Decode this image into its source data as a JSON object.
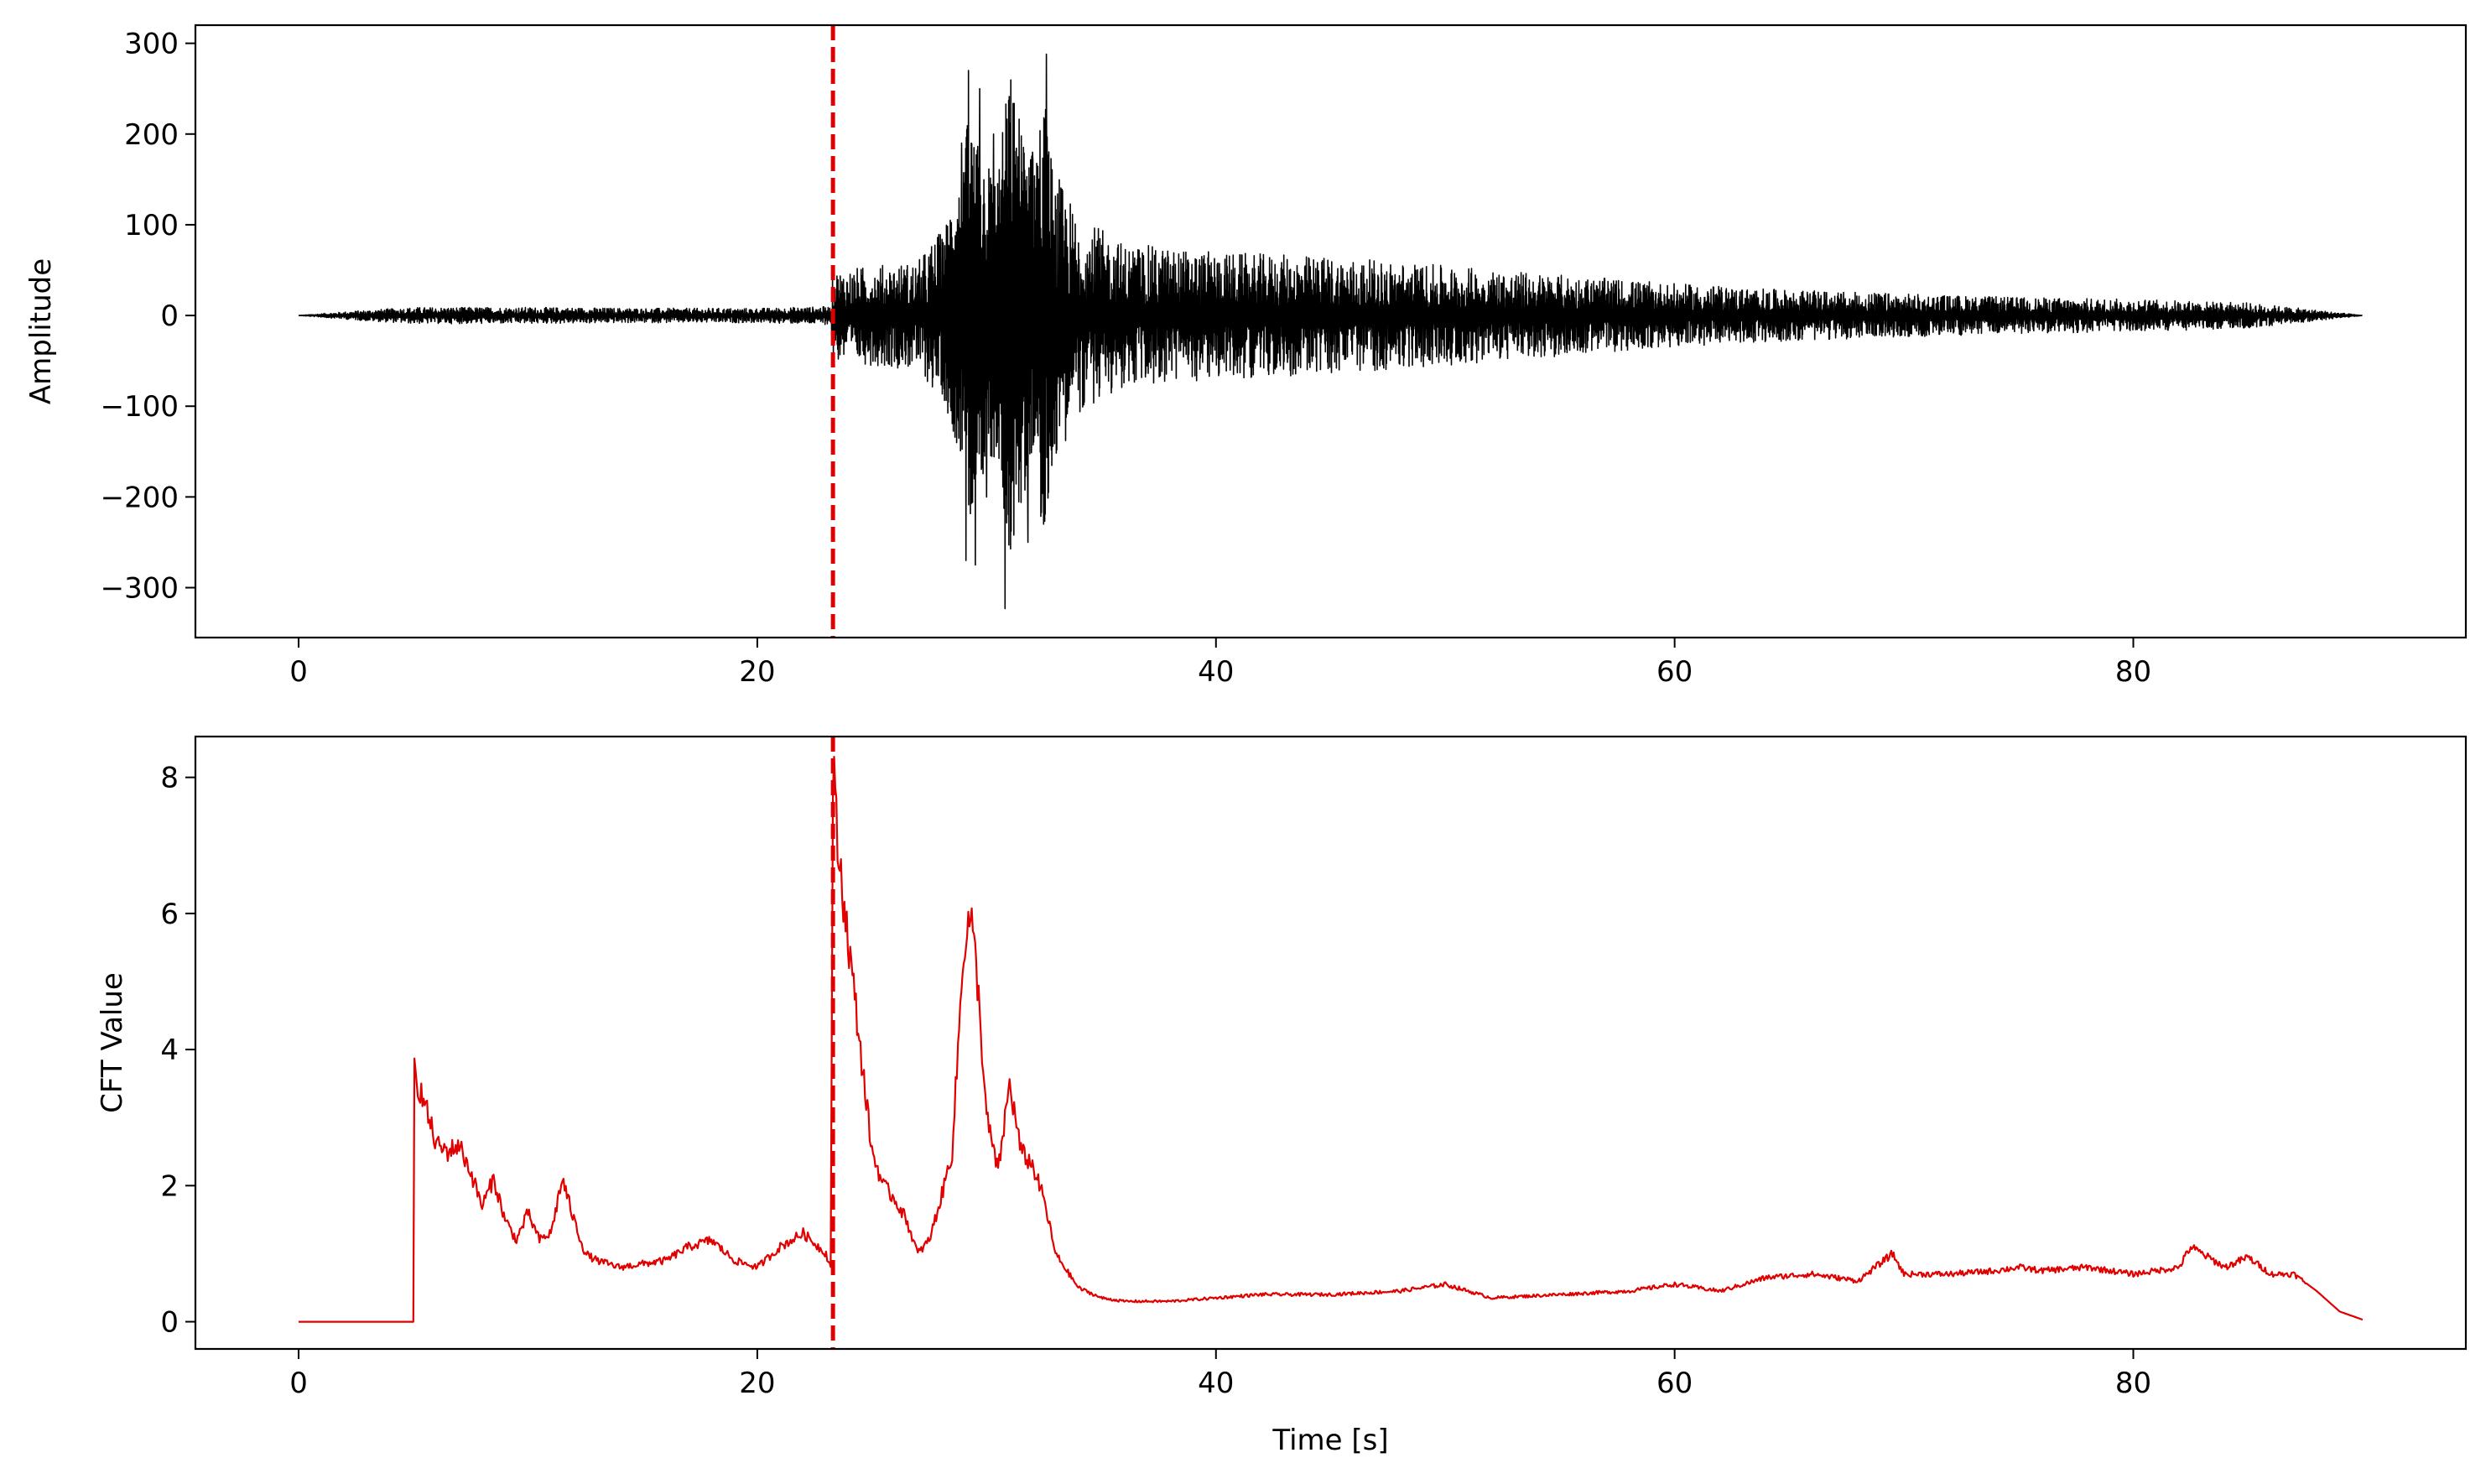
{
  "chart_data": [
    {
      "type": "line",
      "title": "",
      "xlabel": "",
      "ylabel": "Amplitude",
      "xlim": [
        -4.5,
        94.5
      ],
      "ylim": [
        -355,
        320
      ],
      "xticks": [
        0,
        20,
        40,
        60,
        80
      ],
      "xtick_labels": [
        "0",
        "20",
        "40",
        "60",
        "80"
      ],
      "yticks": [
        300,
        200,
        100,
        0,
        -100,
        -200,
        -300
      ],
      "ytick_labels": [
        "300",
        "200",
        "100",
        "0",
        "−100",
        "−200",
        "−300"
      ],
      "grid": false,
      "series_color": "#000000",
      "series": [
        {
          "x": [
            0,
            3,
            5,
            10,
            15,
            20,
            23.2,
            23.3,
            25,
            27,
            28,
            28.5,
            29,
            29.2,
            29.5,
            30,
            30.5,
            31,
            31.5,
            32,
            32.5,
            33,
            34,
            36,
            38,
            40,
            45,
            50,
            55,
            60,
            65,
            70,
            75,
            80,
            85,
            88,
            90
          ],
          "envelope": [
            0,
            6,
            9,
            9,
            8,
            8,
            10,
            50,
            55,
            60,
            95,
            150,
            190,
            270,
            230,
            200,
            190,
            320,
            250,
            205,
            290,
            160,
            110,
            80,
            75,
            70,
            65,
            55,
            45,
            35,
            28,
            24,
            20,
            18,
            14,
            6,
            0
          ],
          "spikes": [
            {
              "x": 28.9,
              "y": 190
            },
            {
              "x": 29.1,
              "y": -270
            },
            {
              "x": 29.2,
              "y": 270
            },
            {
              "x": 29.5,
              "y": -275
            },
            {
              "x": 29.7,
              "y": 250
            },
            {
              "x": 30.0,
              "y": -200
            },
            {
              "x": 30.3,
              "y": 200
            },
            {
              "x": 30.8,
              "y": -323
            },
            {
              "x": 31.0,
              "y": 205
            },
            {
              "x": 31.8,
              "y": -250
            },
            {
              "x": 32.0,
              "y": 180
            },
            {
              "x": 32.4,
              "y": -170
            },
            {
              "x": 32.6,
              "y": 288
            }
          ]
        }
      ],
      "vline": {
        "x": 23.3,
        "color": "#e00000",
        "style": "dashed"
      }
    },
    {
      "type": "line",
      "title": "",
      "xlabel": "Time [s]",
      "ylabel": "CFT Value",
      "xlim": [
        -4.5,
        94.5
      ],
      "ylim": [
        -0.4,
        8.6
      ],
      "xticks": [
        0,
        20,
        40,
        60,
        80
      ],
      "xtick_labels": [
        "0",
        "20",
        "40",
        "60",
        "80"
      ],
      "yticks": [
        8,
        6,
        4,
        2,
        0
      ],
      "ytick_labels": [
        "8",
        "6",
        "4",
        "2",
        "0"
      ],
      "grid": false,
      "series_color": "#e00000",
      "series": [
        {
          "x": [
            0,
            5,
            5.01,
            5.1,
            5.5,
            6,
            6.5,
            7,
            7.5,
            8,
            8.5,
            9,
            9.5,
            10,
            10.5,
            11,
            11.5,
            12,
            12.5,
            13,
            14,
            15,
            16,
            17,
            18,
            19,
            20,
            21,
            22,
            23,
            23.2,
            23.3,
            23.5,
            24,
            24.5,
            25,
            25.5,
            26,
            26.5,
            27,
            27.5,
            28,
            28.5,
            29,
            29.3,
            29.6,
            30,
            30.5,
            31,
            31.5,
            32,
            32.5,
            33,
            34,
            35,
            36,
            38,
            40,
            42,
            45,
            48,
            50,
            52,
            55,
            58,
            60,
            62,
            64,
            66,
            68,
            69.5,
            70,
            72,
            74,
            75,
            76,
            78,
            80,
            82,
            82.5,
            84,
            85,
            86,
            87,
            88,
            89,
            90
          ],
          "y": [
            0,
            0,
            3.8,
            3.6,
            3.2,
            2.6,
            2.5,
            2.6,
            2.2,
            1.7,
            2.1,
            1.5,
            1.2,
            1.6,
            1.2,
            1.3,
            2.1,
            1.5,
            1.0,
            0.9,
            0.8,
            0.85,
            0.9,
            1.1,
            1.2,
            0.9,
            0.8,
            1.1,
            1.3,
            1.0,
            0.8,
            8.2,
            7.0,
            5.5,
            4.0,
            2.5,
            2.0,
            1.8,
            1.5,
            1.0,
            1.2,
            1.8,
            2.5,
            5.5,
            6.0,
            5.0,
            3.0,
            2.2,
            3.5,
            2.5,
            2.3,
            1.8,
            1.0,
            0.5,
            0.35,
            0.3,
            0.3,
            0.35,
            0.4,
            0.4,
            0.45,
            0.55,
            0.35,
            0.4,
            0.45,
            0.55,
            0.45,
            0.65,
            0.7,
            0.6,
            1.0,
            0.7,
            0.7,
            0.75,
            0.8,
            0.75,
            0.8,
            0.7,
            0.8,
            1.1,
            0.8,
            0.95,
            0.7,
            0.7,
            0.45,
            0.15,
            0.03
          ]
        }
      ],
      "vline": {
        "x": 23.3,
        "color": "#e00000",
        "style": "dashed"
      }
    }
  ]
}
